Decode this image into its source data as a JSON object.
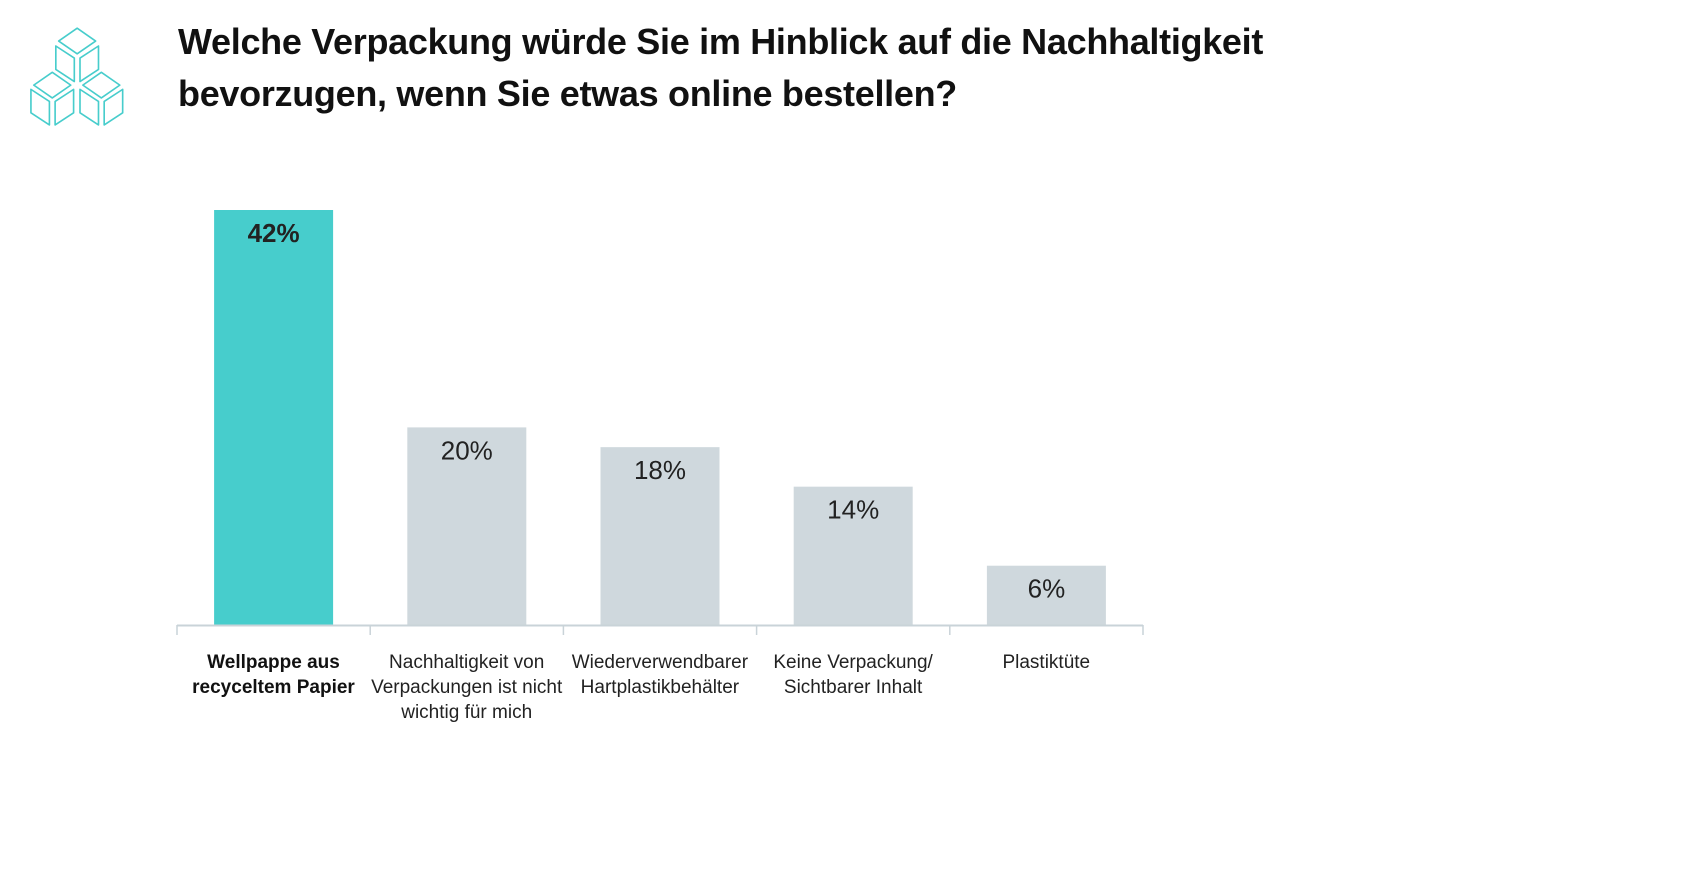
{
  "title": "Welche Verpackung würde Sie im Hinblick auf die Nachhaltigkeit bevorzugen, wenn Sie etwas online bestellen?",
  "logo_icon": "stacked-cubes-icon",
  "colors": {
    "highlight": "#47CDCC",
    "default": "#CFD8DD",
    "logo": "#47CDCC",
    "axis": "#C9D3D8"
  },
  "chart_data": {
    "type": "bar",
    "title": "Welche Verpackung würde Sie im Hinblick auf die Nachhaltigkeit bevorzugen, wenn Sie etwas online bestellen?",
    "categories": [
      "Wellpappe aus recyceltem Papier",
      "Nachhaltigkeit von Verpackungen ist nicht wichtig für mich",
      "Wiederverwendbarer Hartplastikbehälter",
      "Keine Verpackung/ Sichtbarer Inhalt",
      "Plastiktüte"
    ],
    "values": [
      42,
      20,
      18,
      14,
      6
    ],
    "labels": [
      "42%",
      "20%",
      "18%",
      "14%",
      "6%"
    ],
    "highlighted_index": 0,
    "unit": "%",
    "xlabel": "",
    "ylabel": "",
    "ylim": [
      0,
      42
    ],
    "grid": false,
    "legend": "none"
  }
}
